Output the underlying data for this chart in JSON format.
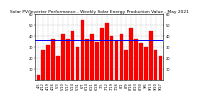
{
  "title": "Solar PV/Inverter Performance - Weekly Solar Energy Production Value - May 2021",
  "weeks": [
    "4/5",
    "4/12",
    "4/19",
    "4/26",
    "5/3",
    "5/10",
    "5/17",
    "5/24",
    "5/31",
    "6/7",
    "6/14",
    "6/21",
    "6/28",
    "7/5",
    "7/12",
    "7/19",
    "7/26",
    "8/2",
    "8/9",
    "8/16",
    "8/23",
    "8/30",
    "9/6",
    "9/13",
    "9/20",
    "9/27"
  ],
  "values": [
    5,
    28,
    32,
    38,
    22,
    42,
    38,
    45,
    30,
    55,
    38,
    42,
    35,
    48,
    52,
    40,
    36,
    42,
    28,
    48,
    38,
    34,
    30,
    45,
    28,
    22
  ],
  "avg_line": 37,
  "bar_color": "#ff0000",
  "avg_line_color": "#0000ff",
  "background_color": "#ffffff",
  "grid_color": "#bbbbbb",
  "ylim": [
    0,
    60
  ],
  "yticks": [
    10,
    20,
    30,
    40,
    50,
    60
  ],
  "title_fontsize": 3.2,
  "tick_fontsize": 2.5,
  "avg_linewidth": 0.7,
  "bar_edgecolor": "#cc0000",
  "bar_linewidth": 0.2
}
